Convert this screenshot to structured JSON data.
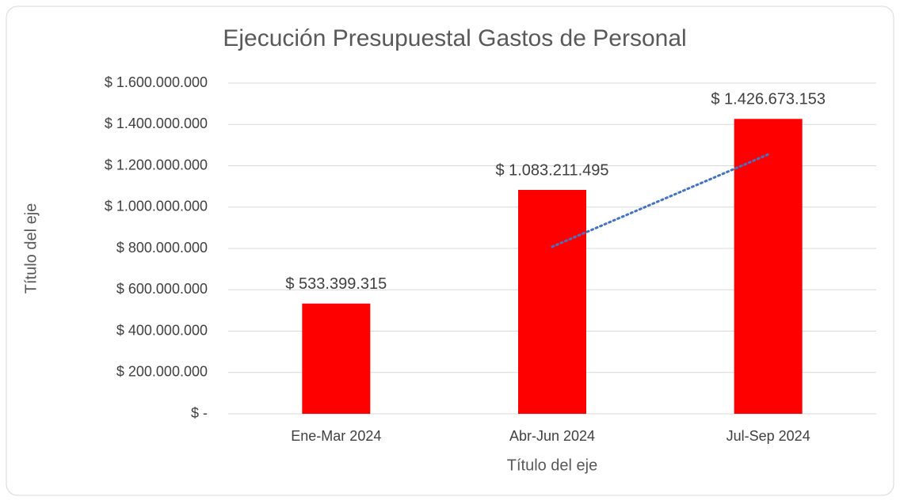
{
  "chart_data": {
    "type": "bar",
    "title": "Ejecución Presupuestal Gastos de Personal",
    "x_label": "Título del eje",
    "y_label": "Título del eje",
    "categories": [
      "Ene-Mar 2024",
      "Abr-Jun 2024",
      "Jul-Sep 2024"
    ],
    "values": [
      533399315,
      1083211495,
      1426673153
    ],
    "value_labels": [
      "$ 533.399.315",
      "$ 1.083.211.495",
      "$ 1.426.673.153"
    ],
    "color": "#ff0000",
    "ylim": [
      0,
      1600000000
    ],
    "yticks": [
      {
        "value": 0,
        "label": "$ -"
      },
      {
        "value": 200000000,
        "label": "$ 200.000.000"
      },
      {
        "value": 400000000,
        "label": "$ 400.000.000"
      },
      {
        "value": 600000000,
        "label": "$ 600.000.000"
      },
      {
        "value": 800000000,
        "label": "$ 800.000.000"
      },
      {
        "value": 1000000000,
        "label": "$ 1.000.000.000"
      },
      {
        "value": 1200000000,
        "label": "$ 1.200.000.000"
      },
      {
        "value": 1400000000,
        "label": "$ 1.400.000.000"
      },
      {
        "value": 1600000000,
        "label": "$ 1.600.000.000"
      }
    ],
    "grid": true,
    "trendline": {
      "color": "#4472c4",
      "values": [
        null,
        808300000,
        1254900000
      ]
    }
  }
}
